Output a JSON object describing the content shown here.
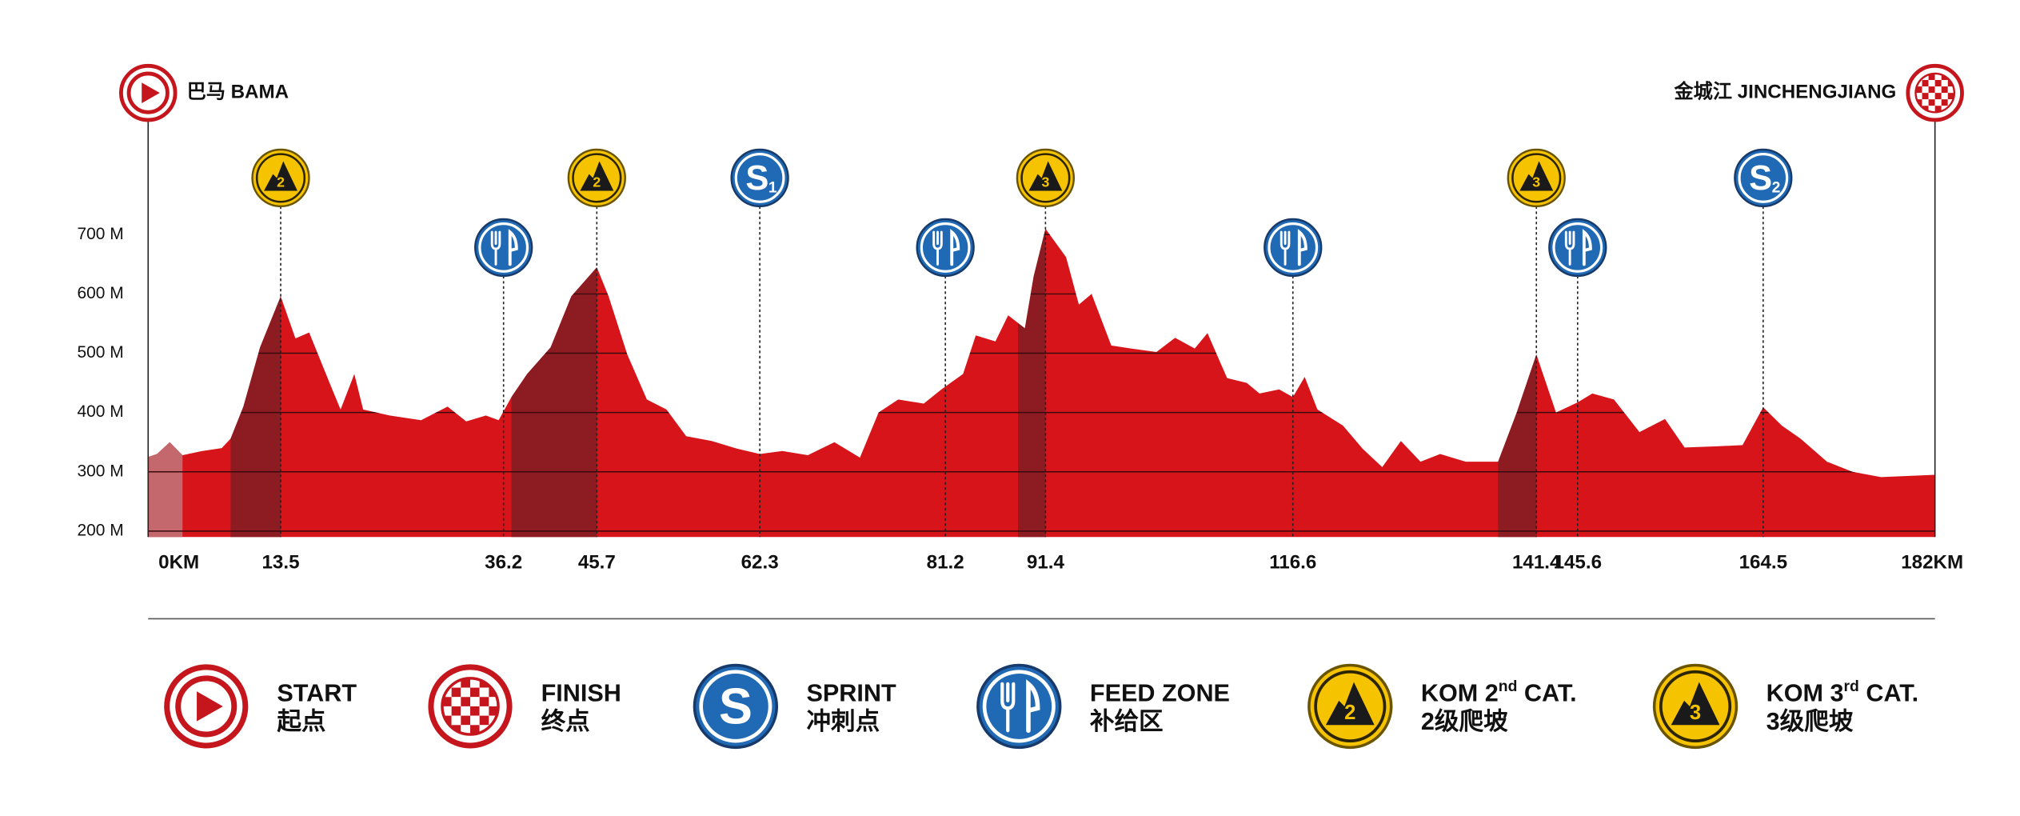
{
  "chart_data": {
    "type": "area",
    "start": {
      "name": "巴马 BAMA"
    },
    "finish": {
      "name": "金城江 JINCHENGJIANG"
    },
    "x": [
      0,
      0.9,
      2.2,
      3.5,
      5.5,
      7.5,
      8.4,
      9.7,
      11.4,
      13.5,
      15.0,
      16.4,
      18.6,
      19.6,
      21.0,
      21.9,
      24.6,
      27.8,
      30.5,
      32.4,
      34.4,
      35.7,
      37.0,
      38.6,
      41.0,
      43.1,
      45.7,
      46.9,
      48.8,
      50.8,
      52.8,
      54.8,
      57.4,
      60.0,
      62.3,
      64.6,
      67.2,
      69.9,
      72.5,
      74.4,
      76.4,
      79.0,
      80.8,
      83.0,
      84.3,
      86.3,
      87.6,
      89.3,
      90.2,
      91.4,
      93.5,
      94.8,
      96.1,
      98.1,
      100.1,
      102.7,
      104.6,
      106.6,
      107.9,
      109.9,
      111.9,
      113.2,
      115.2,
      116.6,
      117.8,
      119.1,
      121.7,
      123.7,
      125.7,
      127.6,
      129.6,
      131.6,
      134.2,
      137.5,
      139.4,
      141.4,
      143.4,
      145.6,
      147.1,
      149.3,
      151.9,
      154.5,
      156.5,
      159.8,
      162.4,
      164.5,
      166.4,
      168.3,
      171.0,
      173.6,
      176.5,
      182
    ],
    "values": [
      325,
      330,
      350,
      328,
      335,
      340,
      356,
      410,
      510,
      596,
      525,
      535,
      445,
      405,
      465,
      405,
      395,
      387,
      410,
      385,
      395,
      387,
      426,
      465,
      510,
      596,
      645,
      596,
      498,
      422,
      405,
      360,
      352,
      339,
      330,
      335,
      328,
      350,
      324,
      400,
      422,
      415,
      439,
      465,
      530,
      520,
      564,
      542,
      630,
      710,
      662,
      582,
      600,
      513,
      508,
      502,
      526,
      508,
      534,
      458,
      450,
      432,
      439,
      426,
      460,
      405,
      378,
      339,
      308,
      352,
      317,
      330,
      317,
      317,
      400,
      498,
      400,
      417,
      432,
      422,
      367,
      389,
      341,
      343,
      345,
      409,
      378,
      356,
      317,
      300,
      291,
      295
    ],
    "color": "#d7141a",
    "climb_color": "#8c1c22",
    "neutral_color": "#c4686e",
    "neutral": [
      0,
      3.5
    ],
    "xlim": [
      0,
      182
    ],
    "xticks": [
      {
        "value": 0,
        "label": "0KM"
      },
      13.5,
      36.2,
      45.7,
      62.3,
      81.2,
      91.4,
      116.6,
      141.4,
      145.6,
      164.5,
      {
        "value": 182,
        "label": "182KM"
      }
    ],
    "ylim": [
      190,
      700
    ],
    "yticks": [
      {
        "value": 200,
        "label": "200 M"
      },
      {
        "value": 300,
        "label": "300 M"
      },
      {
        "value": 400,
        "label": "400 M"
      },
      {
        "value": 500,
        "label": "500 M"
      },
      {
        "value": 600,
        "label": "600 M"
      },
      {
        "value": 700,
        "label": "700 M"
      }
    ],
    "grid": true,
    "markers": [
      {
        "kind": "kom",
        "km": 13.5,
        "text": "2",
        "climb_start": 8.4
      },
      {
        "kind": "feed",
        "km": 36.2
      },
      {
        "kind": "kom",
        "km": 45.7,
        "text": "2",
        "climb_start": 37.0
      },
      {
        "kind": "sprint",
        "km": 62.3,
        "letter": "S",
        "number": "1"
      },
      {
        "kind": "feed",
        "km": 81.2
      },
      {
        "kind": "kom",
        "km": 91.4,
        "text": "3",
        "climb_start": 88.6
      },
      {
        "kind": "feed",
        "km": 116.6
      },
      {
        "kind": "kom",
        "km": 141.4,
        "text": "3",
        "climb_start": 137.5
      },
      {
        "kind": "feed",
        "km": 145.6
      },
      {
        "kind": "sprint",
        "km": 164.5,
        "letter": "S",
        "number": "2"
      }
    ]
  },
  "legend": [
    {
      "icon": "start",
      "title": "START",
      "subtitle": "起点"
    },
    {
      "icon": "finish",
      "title": "FINISH",
      "subtitle": "终点"
    },
    {
      "icon": "sprint",
      "letter": "S",
      "title": "SPRINT",
      "subtitle": "冲刺点"
    },
    {
      "icon": "feed",
      "title": "FEED ZONE",
      "subtitle": "补给区"
    },
    {
      "icon": "kom",
      "digit": "2",
      "title": "KOM 2",
      "sup": "nd",
      "title_end": " CAT.",
      "subtitle": "2级爬坡"
    },
    {
      "icon": "kom",
      "digit": "3",
      "title": "KOM 3",
      "sup": "rd",
      "title_end": " CAT.",
      "subtitle": "3级爬坡"
    }
  ]
}
